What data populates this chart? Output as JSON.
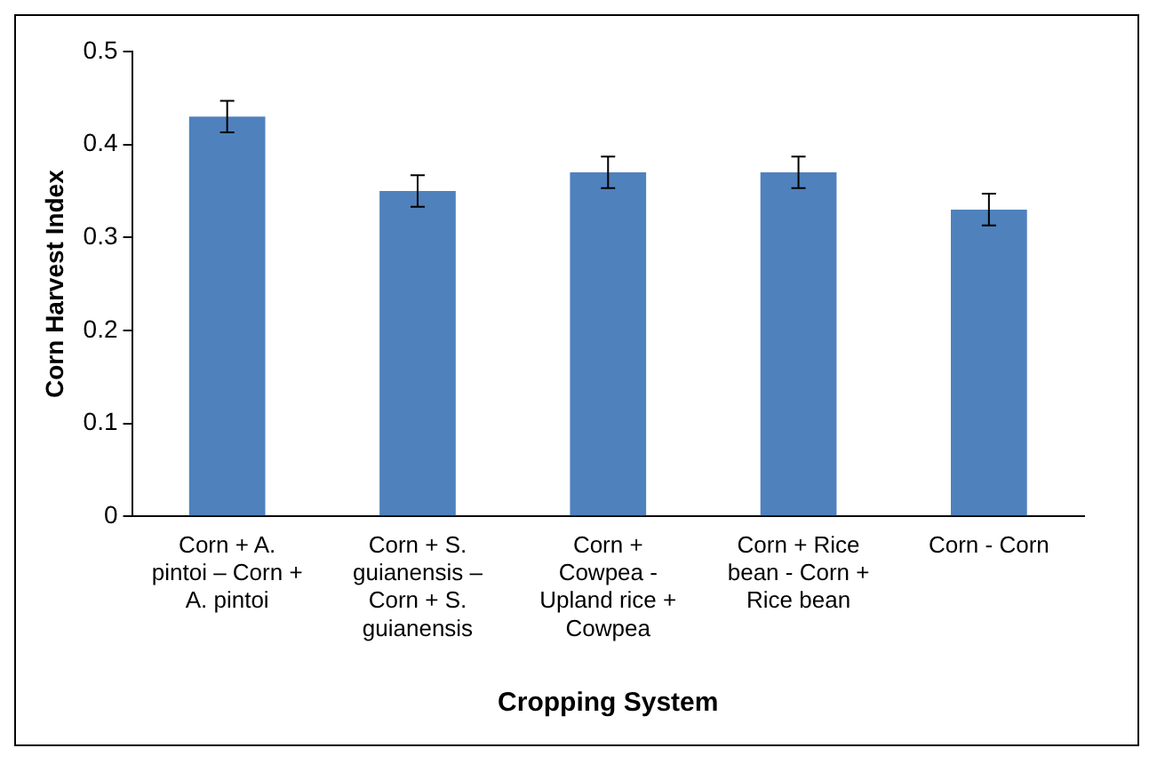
{
  "chart_data": {
    "type": "bar",
    "categories": [
      "Corn + A. pintoi – Corn + A. pintoi",
      "Corn + S. guianensis – Corn + S. guianensis",
      "Corn + Cowpea - Upland rice + Cowpea",
      "Corn + Rice bean - Corn + Rice bean",
      "Corn - Corn"
    ],
    "values": [
      0.43,
      0.35,
      0.37,
      0.37,
      0.33
    ],
    "errors": [
      0.017,
      0.017,
      0.017,
      0.017,
      0.017
    ],
    "color": "#4f81bd",
    "xlabel": "Cropping System",
    "ylabel": "Corn Harvest Index",
    "ylim": [
      0,
      0.5
    ],
    "yticks": [
      0,
      0.1,
      0.2,
      0.3,
      0.4,
      0.5
    ],
    "grid": false,
    "legend": false
  }
}
